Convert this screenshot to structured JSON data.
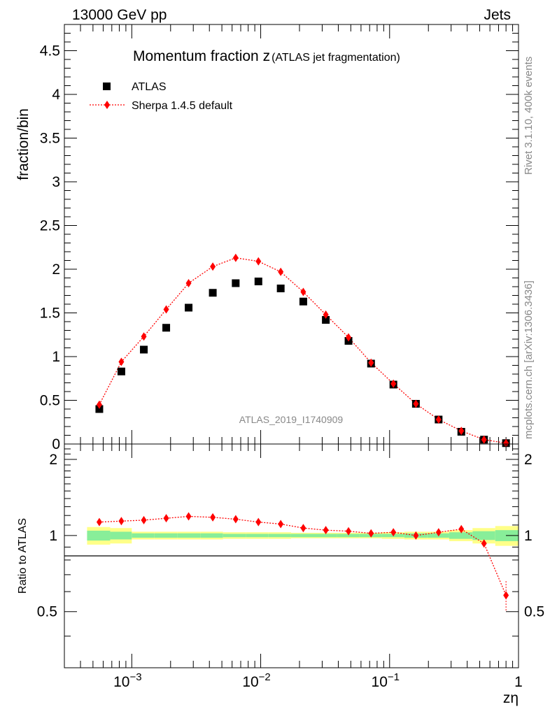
{
  "header": {
    "left": "13000 GeV pp",
    "right": "Jets"
  },
  "side_text": {
    "rivet": "Rivet 3.1.10,  400k events",
    "mcplots": "mcplots.cern.ch [arXiv:1306.3436]"
  },
  "chart_data": {
    "type": "scatter",
    "title_main": "Momentum fraction z",
    "title_sub": "(ATLAS jet fragmentation)",
    "analysis_id": "ATLAS_2019_I1740909",
    "xlabel": "zη",
    "ylabel": "fraction/bin",
    "ratio_ylabel": "Ratio to ATLAS",
    "xscale": "log",
    "xlim": [
      0.0003,
      1
    ],
    "ylim": [
      0,
      4.8
    ],
    "ratio_ylim": [
      0.3,
      2.3
    ],
    "x_ticks": [
      {
        "value": 0.001,
        "base": "10",
        "exp": "−3"
      },
      {
        "value": 0.01,
        "base": "10",
        "exp": "−2"
      },
      {
        "value": 0.1,
        "base": "10",
        "exp": "−1"
      },
      {
        "value": 1,
        "base": "1",
        "exp": ""
      }
    ],
    "y_ticks": [
      "0",
      "0.5",
      "1",
      "1.5",
      "2",
      "2.5",
      "3",
      "3.5",
      "4",
      "4.5"
    ],
    "ratio_ticks": [
      "0.5",
      "1",
      "2"
    ],
    "legend": [
      {
        "name": "ATLAS",
        "marker": "square",
        "color": "#000000"
      },
      {
        "name": "Sherpa 1.4.5 default",
        "marker": "diamond",
        "color": "#ff0000"
      }
    ],
    "x": [
      0.00056,
      0.00083,
      0.00124,
      0.00185,
      0.00276,
      0.00425,
      0.0064,
      0.0096,
      0.0143,
      0.0214,
      0.032,
      0.048,
      0.0718,
      0.107,
      0.16,
      0.24,
      0.36,
      0.54,
      0.8
    ],
    "series": [
      {
        "name": "ATLAS",
        "values": [
          0.4,
          0.83,
          1.08,
          1.33,
          1.56,
          1.73,
          1.84,
          1.86,
          1.78,
          1.63,
          1.42,
          1.18,
          0.92,
          0.68,
          0.46,
          0.28,
          0.14,
          0.05,
          0.01
        ]
      },
      {
        "name": "Sherpa 1.4.5 default",
        "values": [
          0.45,
          0.94,
          1.23,
          1.54,
          1.84,
          2.03,
          2.13,
          2.09,
          1.97,
          1.74,
          1.48,
          1.22,
          0.93,
          0.69,
          0.46,
          0.28,
          0.15,
          0.05,
          0.01
        ]
      }
    ],
    "ratio": [
      1.13,
      1.14,
      1.15,
      1.17,
      1.19,
      1.18,
      1.16,
      1.13,
      1.11,
      1.07,
      1.05,
      1.04,
      1.02,
      1.03,
      1.0,
      1.03,
      1.06,
      0.93,
      0.58
    ],
    "bins": [
      0.00045,
      0.00068,
      0.001,
      0.0015,
      0.00225,
      0.0034,
      0.0051,
      0.0077,
      0.0115,
      0.0172,
      0.026,
      0.039,
      0.058,
      0.087,
      0.13,
      0.195,
      0.29,
      0.44,
      0.66,
      1.0
    ],
    "band_green": [
      0.045,
      0.035,
      0.02,
      0.02,
      0.02,
      0.02,
      0.015,
      0.015,
      0.015,
      0.015,
      0.015,
      0.015,
      0.015,
      0.015,
      0.02,
      0.02,
      0.03,
      0.04,
      0.05
    ],
    "band_yellow": [
      0.08,
      0.07,
      0.035,
      0.035,
      0.035,
      0.035,
      0.03,
      0.03,
      0.03,
      0.025,
      0.025,
      0.025,
      0.025,
      0.03,
      0.035,
      0.035,
      0.05,
      0.07,
      0.09
    ]
  }
}
